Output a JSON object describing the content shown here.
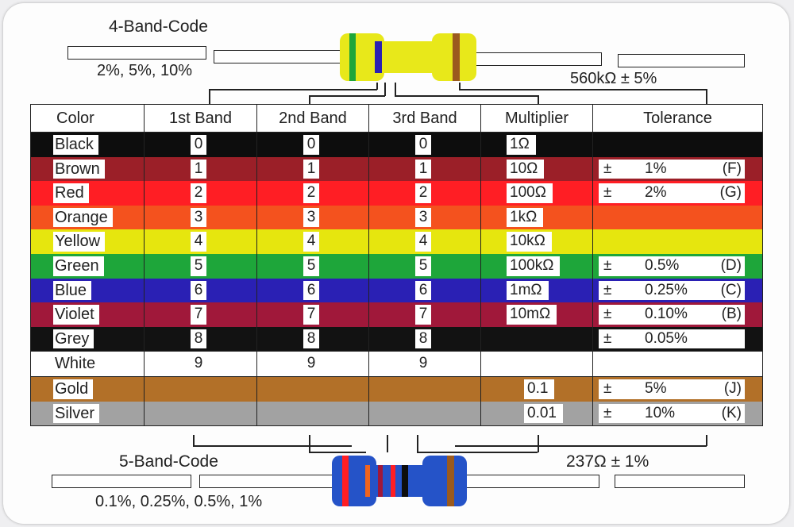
{
  "four_band": {
    "title": "4-Band-Code",
    "tolerances": "2%, 5%, 10%",
    "example": "560kΩ ± 5%"
  },
  "five_band": {
    "title": "5-Band-Code",
    "tolerances": "0.1%, 0.25%, 0.5%, 1%",
    "example": "237Ω ± 1%"
  },
  "headers": {
    "color": "Color",
    "band1": "1st  Band",
    "band2": "2nd  Band",
    "band3": "3rd  Band",
    "multiplier": "Multiplier",
    "tolerance": "Tolerance"
  },
  "rows": [
    {
      "name": "Black",
      "hex": "#0d0d0d",
      "digit": "0",
      "multiplier": "1Ω",
      "tol_sign": "",
      "tol_value": "",
      "tol_code": ""
    },
    {
      "name": "Brown",
      "hex": "#9b1f28",
      "digit": "1",
      "multiplier": "10Ω",
      "tol_sign": "±",
      "tol_value": "1%",
      "tol_code": "(F)"
    },
    {
      "name": "Red",
      "hex": "#ff1e24",
      "digit": "2",
      "multiplier": "100Ω",
      "tol_sign": "±",
      "tol_value": "2%",
      "tol_code": "(G)"
    },
    {
      "name": "Orange",
      "hex": "#f4521e",
      "digit": "3",
      "multiplier": "1kΩ",
      "tol_sign": "",
      "tol_value": "",
      "tol_code": ""
    },
    {
      "name": "Yellow",
      "hex": "#e6e60e",
      "digit": "4",
      "multiplier": "10kΩ",
      "tol_sign": "",
      "tol_value": "",
      "tol_code": ""
    },
    {
      "name": "Green",
      "hex": "#1ea63a",
      "digit": "5",
      "multiplier": "100kΩ",
      "tol_sign": "±",
      "tol_value": "0.5%",
      "tol_code": "(D)"
    },
    {
      "name": "Blue",
      "hex": "#2a20b4",
      "digit": "6",
      "multiplier": "1mΩ",
      "tol_sign": "±",
      "tol_value": "0.25%",
      "tol_code": "(C)"
    },
    {
      "name": "Violet",
      "hex": "#a0183a",
      "digit": "7",
      "multiplier": "10mΩ",
      "tol_sign": "±",
      "tol_value": "0.10%",
      "tol_code": "(B)"
    },
    {
      "name": "Grey",
      "hex": "#121212",
      "digit": "8",
      "multiplier": "",
      "tol_sign": "±",
      "tol_value": "0.05%",
      "tol_code": ""
    },
    {
      "name": "White",
      "hex": "#ffffff",
      "digit": "9",
      "multiplier": "",
      "tol_sign": "",
      "tol_value": "",
      "tol_code": ""
    },
    {
      "name": "Gold",
      "hex": "#b27028",
      "digit": "",
      "multiplier": "0.1",
      "tol_sign": "±",
      "tol_value": "5%",
      "tol_code": "(J)"
    },
    {
      "name": "Silver",
      "hex": "#a2a2a2",
      "digit": "",
      "multiplier": "0.01",
      "tol_sign": "±",
      "tol_value": "10%",
      "tol_code": "(K)"
    }
  ]
}
